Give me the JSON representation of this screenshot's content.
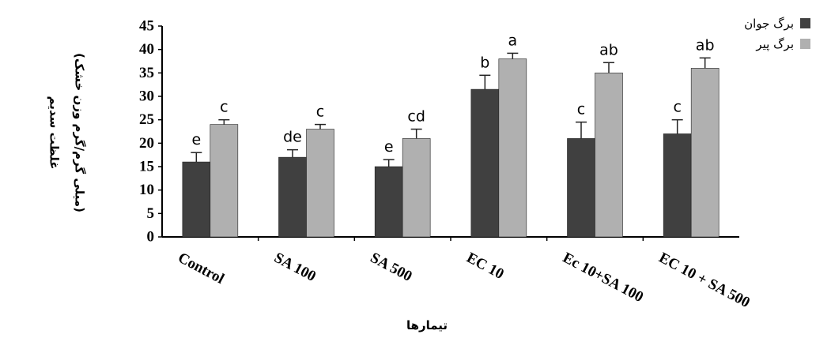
{
  "chart_data": {
    "type": "bar",
    "categories": [
      "Control",
      "SA 100",
      "SA 500",
      "EC 10",
      "Ec 10+SA 100",
      "EC 10 + SA 500"
    ],
    "series": [
      {
        "name": "برگ جوان",
        "color": "#404040",
        "values": [
          16,
          17,
          15,
          31.5,
          21,
          22
        ],
        "errors": [
          2,
          1.6,
          1.5,
          3,
          3.5,
          3
        ],
        "labels": [
          "e",
          "de",
          "e",
          "b",
          "c",
          "c"
        ]
      },
      {
        "name": "برگ پیر",
        "color": "#b0b0b0",
        "values": [
          24,
          23,
          21,
          38,
          35,
          36
        ],
        "errors": [
          1,
          1,
          2,
          1.2,
          2.2,
          2.2
        ],
        "labels": [
          "c",
          "c",
          "cd",
          "a",
          "ab",
          "ab"
        ]
      }
    ],
    "ylim": [
      0,
      45
    ],
    "yticks": [
      0,
      5,
      10,
      15,
      20,
      25,
      30,
      35,
      40,
      45
    ],
    "xlabel": "تیمارها",
    "ylabel_line1": "غلظت سدیم",
    "ylabel_line2": "(میلی گرم/گرم وزن خشک)",
    "grid": false,
    "legend_position": "top-right"
  }
}
